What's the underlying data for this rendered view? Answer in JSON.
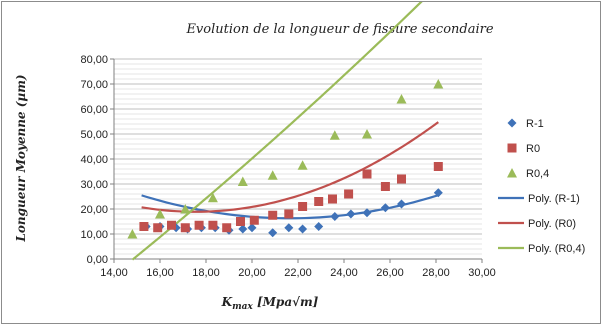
{
  "chart_data": {
    "type": "scatter",
    "title": "Evolution de la longueur de fissure secondaire",
    "xlabel": "Kmax [Mpa√m]",
    "xlabel_main": "K",
    "xlabel_sub": "max",
    "xlabel_rest": " [Mpa√m]",
    "ylabel": "Longueur Moyenne (µm)",
    "xlim": [
      14,
      30
    ],
    "ylim": [
      0,
      80
    ],
    "x_ticks": [
      "14,00",
      "16,00",
      "18,00",
      "20,00",
      "22,00",
      "24,00",
      "26,00",
      "28,00",
      "30,00"
    ],
    "y_ticks": [
      "0,00",
      "10,00",
      "20,00",
      "30,00",
      "40,00",
      "50,00",
      "60,00",
      "70,00",
      "80,00"
    ],
    "grid": true,
    "legend_position": "right",
    "series": [
      {
        "name": "R-1",
        "marker": "diamond",
        "color": "#3f72b8",
        "points": [
          [
            15.4,
            13.0
          ],
          [
            16.0,
            13.0
          ],
          [
            16.7,
            12.5
          ],
          [
            17.2,
            12.0
          ],
          [
            17.8,
            12.5
          ],
          [
            18.4,
            12.5
          ],
          [
            19.0,
            11.5
          ],
          [
            19.6,
            12.0
          ],
          [
            20.0,
            12.5
          ],
          [
            20.9,
            10.5
          ],
          [
            21.6,
            12.5
          ],
          [
            22.2,
            12.0
          ],
          [
            22.9,
            13.0
          ],
          [
            23.6,
            17.0
          ],
          [
            24.3,
            18.0
          ],
          [
            25.0,
            18.5
          ],
          [
            25.8,
            20.5
          ],
          [
            26.5,
            22.0
          ],
          [
            28.1,
            26.5
          ]
        ]
      },
      {
        "name": "R0",
        "marker": "square",
        "color": "#c0504d",
        "points": [
          [
            15.3,
            13.0
          ],
          [
            15.9,
            12.5
          ],
          [
            16.5,
            13.5
          ],
          [
            17.1,
            12.5
          ],
          [
            17.7,
            13.5
          ],
          [
            18.3,
            13.5
          ],
          [
            18.9,
            12.5
          ],
          [
            19.5,
            15.0
          ],
          [
            20.1,
            15.5
          ],
          [
            20.9,
            17.5
          ],
          [
            21.6,
            18.0
          ],
          [
            22.2,
            21.0
          ],
          [
            22.9,
            23.0
          ],
          [
            23.5,
            24.0
          ],
          [
            24.2,
            26.0
          ],
          [
            25.0,
            34.0
          ],
          [
            25.8,
            29.0
          ],
          [
            26.5,
            32.0
          ],
          [
            28.1,
            37.0
          ]
        ]
      },
      {
        "name": "R0,4",
        "marker": "triangle",
        "color": "#9bbb59",
        "points": [
          [
            14.8,
            10.0
          ],
          [
            16.0,
            18.0
          ],
          [
            17.1,
            20.0
          ],
          [
            18.3,
            24.5
          ],
          [
            19.6,
            31.0
          ],
          [
            20.9,
            33.5
          ],
          [
            22.2,
            37.5
          ],
          [
            23.6,
            49.5
          ],
          [
            25.0,
            50.0
          ],
          [
            26.5,
            64.0
          ],
          [
            28.1,
            70.0
          ]
        ]
      }
    ],
    "trendlines": [
      {
        "name": "Poly. (R-1)",
        "color": "#3f72b8",
        "coef": [
          119.77,
          -9.5646,
          0.221
        ],
        "x_range": [
          15.2,
          28.1
        ]
      },
      {
        "name": "Poly. (R0)",
        "color": "#c0504d",
        "coef": [
          118.17,
          -11.3134,
          0.3223
        ],
        "x_range": [
          15.2,
          28.1
        ]
      },
      {
        "name": "Poly. (R0,4)",
        "color": "#9bbb59",
        "coef": [
          -98.14,
          5.7464,
          0.0585
        ],
        "x_range": [
          14.8,
          28.1
        ]
      }
    ]
  }
}
